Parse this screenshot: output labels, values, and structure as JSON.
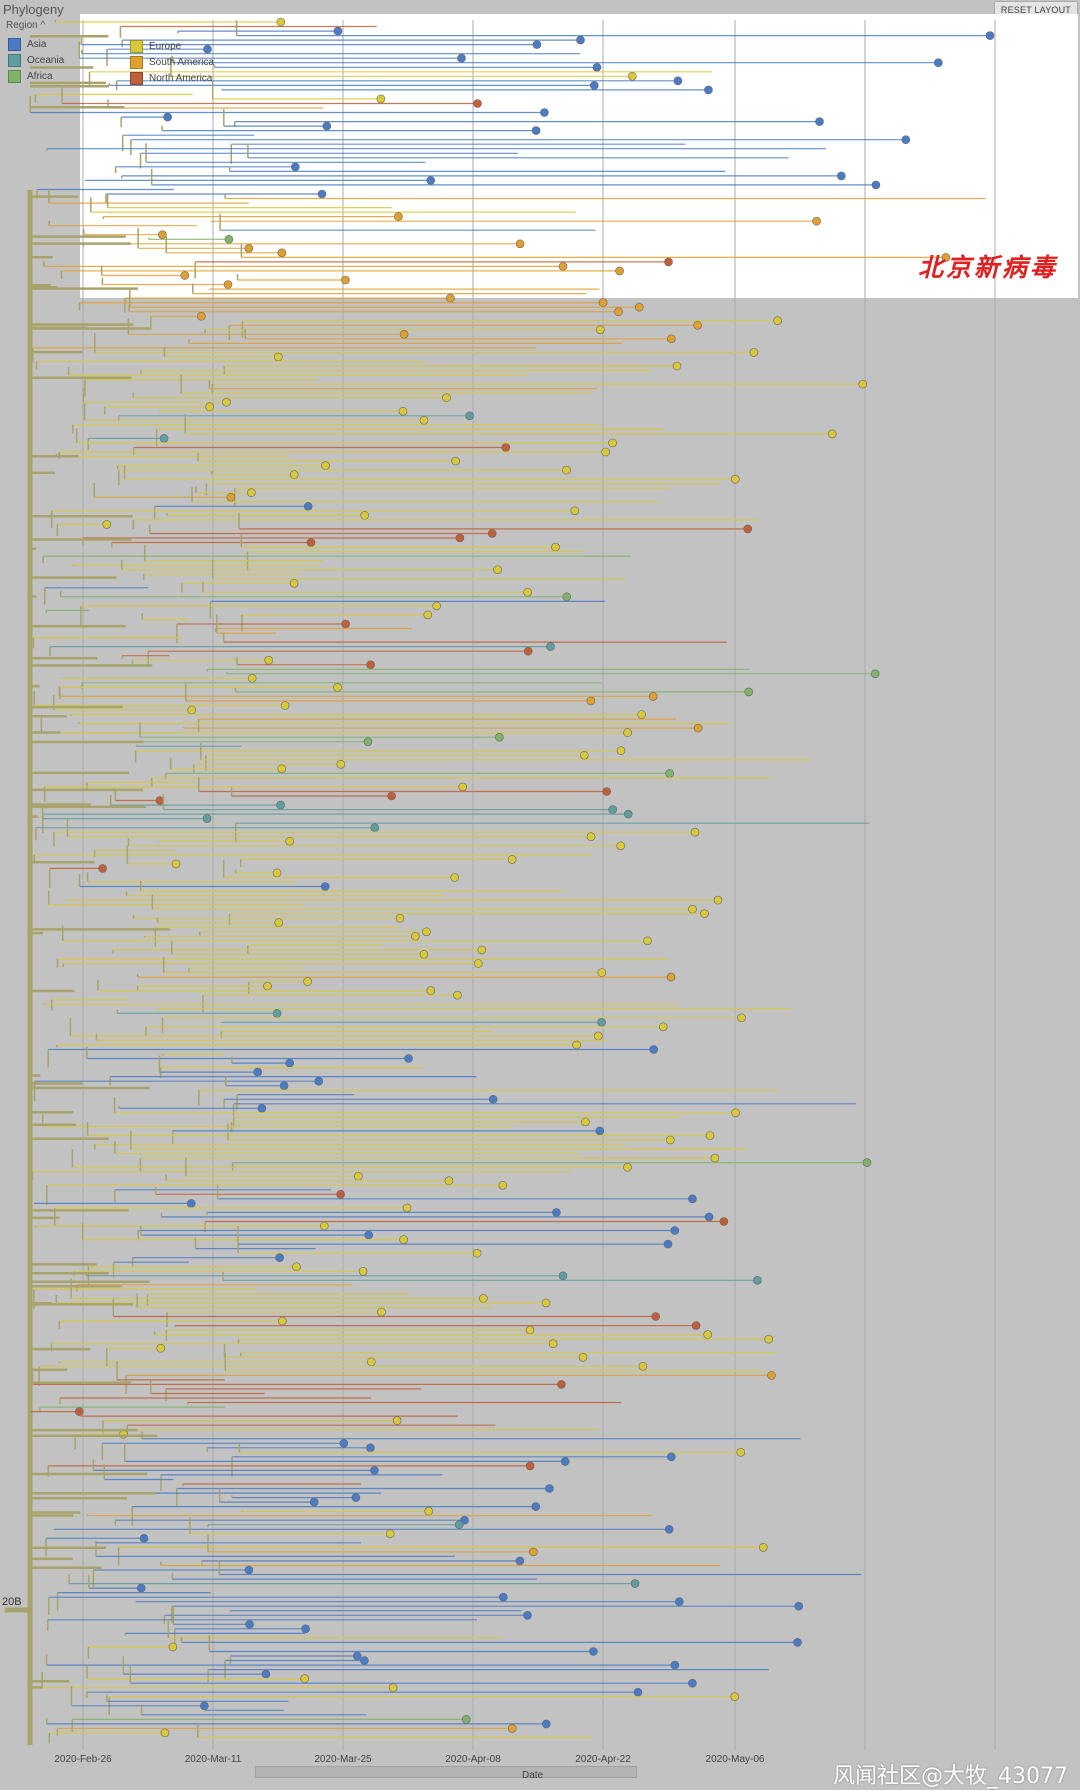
{
  "panel": {
    "title": "Phylogeny",
    "region_label": "Region ^",
    "reset_label": "RESET LAYOUT"
  },
  "legend": {
    "left": [
      {
        "name": "Asia",
        "color": "#4a7bc4"
      },
      {
        "name": "Oceania",
        "color": "#5f9ea0"
      },
      {
        "name": "Africa",
        "color": "#7fb36a"
      }
    ],
    "inset": [
      {
        "name": "Europe",
        "color": "#d8c83a"
      },
      {
        "name": "South America",
        "color": "#e0a030"
      },
      {
        "name": "North America",
        "color": "#c0603a"
      }
    ]
  },
  "annotation": "北京新病毒",
  "clade_label": "20B",
  "axis": {
    "title": "Date",
    "ticks": [
      "2020-Feb-26",
      "2020-Mar-11",
      "2020-Mar-25",
      "2020-Apr-08",
      "2020-Apr-22",
      "2020-May-06"
    ]
  },
  "watermark": "风闻社区@大牧_43077",
  "colors": {
    "branch": "#a8a36a",
    "europe": "#d8c83a",
    "asia": "#4a7bc4",
    "south_america": "#e0a030",
    "north_america": "#c0603a",
    "africa": "#7fb36a",
    "oceania": "#5f9ea0"
  }
}
